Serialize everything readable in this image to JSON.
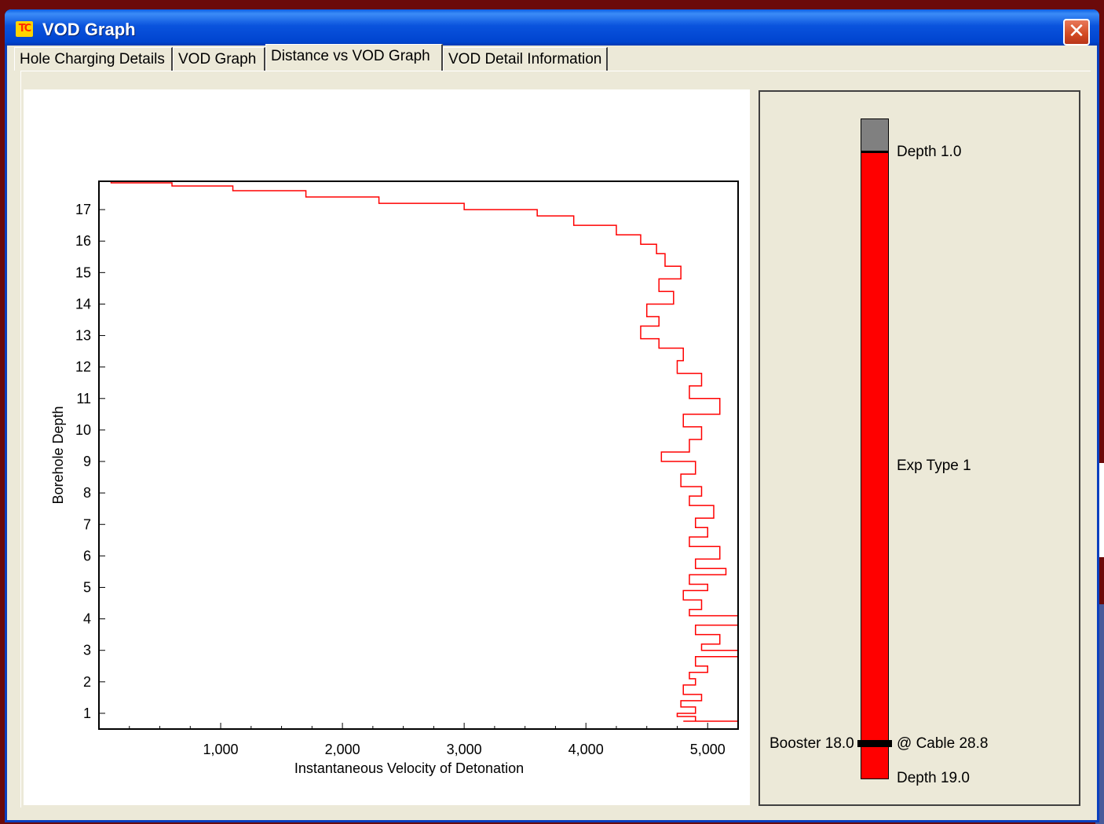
{
  "window": {
    "title": "VOD Graph",
    "icon": "app-logo-icon",
    "close_symbol": "✕"
  },
  "tabs": [
    "Hole Charging Details",
    "VOD Graph",
    "Distance vs VOD Graph",
    "VOD Detail Information"
  ],
  "active_tab": 2,
  "chart_data": {
    "type": "line",
    "title": "",
    "xlabel": "Instantaneous Velocity of Detonation",
    "ylabel": "Borehole Depth",
    "xlim": [
      0,
      5250
    ],
    "ylim": [
      0.5,
      17.9
    ],
    "x_ticks": [
      1000,
      2000,
      3000,
      4000,
      5000
    ],
    "x_tick_labels": [
      "1,000",
      "2,000",
      "3,000",
      "4,000",
      "5,000"
    ],
    "y_ticks": [
      1,
      2,
      3,
      4,
      5,
      6,
      7,
      8,
      9,
      10,
      11,
      12,
      13,
      14,
      15,
      16,
      17
    ],
    "y_tick_labels": [
      "1",
      "2",
      "3",
      "4",
      "5",
      "6",
      "7",
      "8",
      "9",
      "10",
      "11",
      "12",
      "13",
      "14",
      "15",
      "16",
      "17"
    ],
    "grid": false,
    "line_color": "#ff0000",
    "series": [
      {
        "points": [
          [
            5250,
            0.75
          ],
          [
            4800,
            0.75
          ],
          [
            4900,
            0.9
          ],
          [
            4750,
            1.0
          ],
          [
            4900,
            1.2
          ],
          [
            4780,
            1.4
          ],
          [
            4950,
            1.6
          ],
          [
            4800,
            1.9
          ],
          [
            4900,
            2.1
          ],
          [
            4850,
            2.3
          ],
          [
            5000,
            2.5
          ],
          [
            4900,
            2.8
          ],
          [
            5250,
            3.0
          ],
          [
            4950,
            3.2
          ],
          [
            5100,
            3.5
          ],
          [
            4900,
            3.8
          ],
          [
            5250,
            4.1
          ],
          [
            4850,
            4.3
          ],
          [
            4950,
            4.6
          ],
          [
            4800,
            4.9
          ],
          [
            5000,
            5.1
          ],
          [
            4850,
            5.4
          ],
          [
            5150,
            5.6
          ],
          [
            4900,
            5.9
          ],
          [
            5100,
            6.3
          ],
          [
            4850,
            6.6
          ],
          [
            5000,
            6.9
          ],
          [
            4900,
            7.2
          ],
          [
            5050,
            7.6
          ],
          [
            4850,
            7.9
          ],
          [
            4950,
            8.2
          ],
          [
            4780,
            8.6
          ],
          [
            4900,
            9.0
          ],
          [
            4620,
            9.3
          ],
          [
            4850,
            9.7
          ],
          [
            4950,
            10.1
          ],
          [
            4800,
            10.5
          ],
          [
            5100,
            11.0
          ],
          [
            4850,
            11.4
          ],
          [
            4950,
            11.8
          ],
          [
            4750,
            12.2
          ],
          [
            4800,
            12.6
          ],
          [
            4600,
            12.9
          ],
          [
            4450,
            13.3
          ],
          [
            4600,
            13.6
          ],
          [
            4500,
            14.0
          ],
          [
            4720,
            14.4
          ],
          [
            4600,
            14.8
          ],
          [
            4780,
            15.2
          ],
          [
            4650,
            15.6
          ],
          [
            4580,
            15.9
          ],
          [
            4450,
            16.2
          ],
          [
            4250,
            16.5
          ],
          [
            3900,
            16.8
          ],
          [
            3600,
            17.0
          ],
          [
            3000,
            17.2
          ],
          [
            2300,
            17.4
          ],
          [
            1700,
            17.6
          ],
          [
            1100,
            17.75
          ],
          [
            600,
            17.85
          ],
          [
            100,
            17.9
          ]
        ]
      }
    ]
  },
  "hole_column": {
    "top_label": "Depth 1.0",
    "middle_label": "Exp Type 1",
    "booster_label": "Booster 18.0",
    "cable_label": "@ Cable 28.8",
    "bottom_label": "Depth 19.0",
    "stemming_color": "#808080",
    "explosive_color": "#ff0000",
    "booster_color": "#000000"
  }
}
